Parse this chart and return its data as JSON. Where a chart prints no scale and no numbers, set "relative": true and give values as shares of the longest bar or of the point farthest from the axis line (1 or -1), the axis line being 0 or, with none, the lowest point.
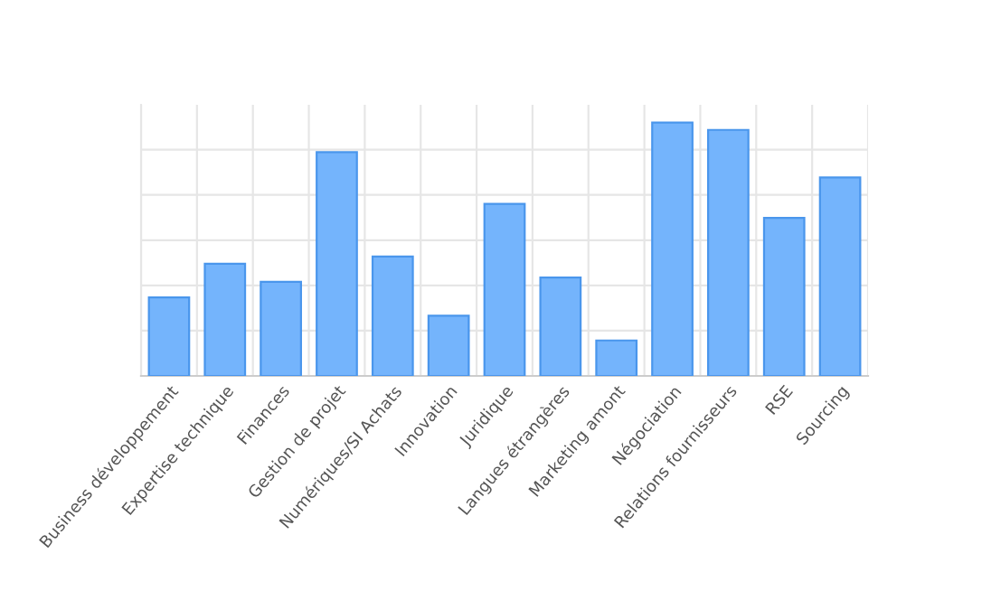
{
  "chart_data": {
    "type": "bar",
    "relative": true,
    "grid": true,
    "categories": [
      "Business développement",
      "Expertise technique",
      "Finances",
      "Gestion de projet",
      "Numériques/SI Achats",
      "Innovation",
      "Juridique",
      "Langues étrangères",
      "Marketing amont",
      "Négociation",
      "Relations fournisseurs",
      "RSE",
      "Sourcing"
    ],
    "values": [
      0.31,
      0.443,
      0.371,
      0.883,
      0.471,
      0.238,
      0.679,
      0.388,
      0.14,
      1,
      0.971,
      0.624,
      0.783
    ],
    "color": "#74b4fc"
  }
}
